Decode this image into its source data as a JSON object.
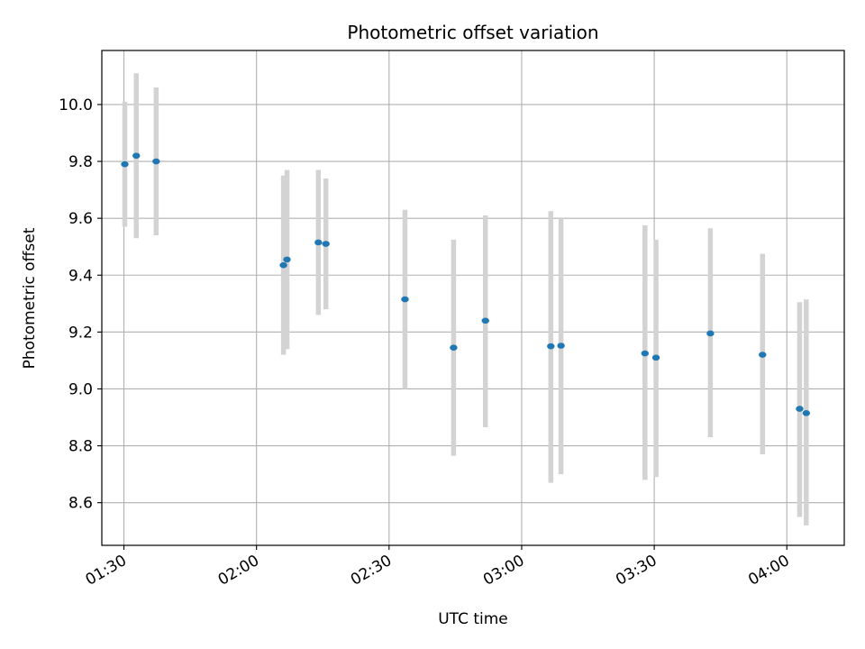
{
  "chart_data": {
    "type": "scatter",
    "title": "Photometric offset variation",
    "xlabel": "UTC time",
    "ylabel": "Photometric offset",
    "x_unit": "time (HH:MM UTC)",
    "xlim": [
      "01:25",
      "04:13"
    ],
    "ylim": [
      8.45,
      10.19
    ],
    "x_ticks": [
      "01:30",
      "02:00",
      "02:30",
      "03:00",
      "03:30",
      "04:00"
    ],
    "y_ticks": [
      8.6,
      8.8,
      9.0,
      9.2,
      9.4,
      9.6,
      9.8,
      10.0
    ],
    "y_tick_labels": [
      "8.6",
      "8.8",
      "9.0",
      "9.2",
      "9.4",
      "9.6",
      "9.8",
      "10.0"
    ],
    "grid": true,
    "x_tick_rotation": "rotated",
    "colors": {
      "points": "#1f77b4",
      "error_bars": "#d3d3d3",
      "grid": "#b0b0b0"
    },
    "points": [
      {
        "x": "01:30:12",
        "y": 9.79,
        "ylow": 9.57,
        "yhigh": 10.01
      },
      {
        "x": "01:32:48",
        "y": 9.82,
        "ylow": 9.53,
        "yhigh": 10.11
      },
      {
        "x": "01:37:18",
        "y": 9.8,
        "ylow": 9.54,
        "yhigh": 10.06
      },
      {
        "x": "02:06:06",
        "y": 9.435,
        "ylow": 9.12,
        "yhigh": 9.75
      },
      {
        "x": "02:06:54",
        "y": 9.455,
        "ylow": 9.14,
        "yhigh": 9.77
      },
      {
        "x": "02:14:00",
        "y": 9.515,
        "ylow": 9.26,
        "yhigh": 9.77
      },
      {
        "x": "02:15:42",
        "y": 9.51,
        "ylow": 9.28,
        "yhigh": 9.74
      },
      {
        "x": "02:33:36",
        "y": 9.315,
        "ylow": 9.0,
        "yhigh": 9.63
      },
      {
        "x": "02:44:36",
        "y": 9.145,
        "ylow": 8.765,
        "yhigh": 9.525
      },
      {
        "x": "02:51:48",
        "y": 9.24,
        "ylow": 8.865,
        "yhigh": 9.61
      },
      {
        "x": "03:06:36",
        "y": 9.15,
        "ylow": 8.67,
        "yhigh": 9.625
      },
      {
        "x": "03:08:54",
        "y": 9.152,
        "ylow": 8.7,
        "yhigh": 9.6
      },
      {
        "x": "03:27:54",
        "y": 9.125,
        "ylow": 8.68,
        "yhigh": 9.575
      },
      {
        "x": "03:30:24",
        "y": 9.11,
        "ylow": 8.69,
        "yhigh": 9.525
      },
      {
        "x": "03:42:42",
        "y": 9.195,
        "ylow": 8.83,
        "yhigh": 9.565
      },
      {
        "x": "03:54:30",
        "y": 9.12,
        "ylow": 8.77,
        "yhigh": 9.475
      },
      {
        "x": "04:02:54",
        "y": 8.93,
        "ylow": 8.55,
        "yhigh": 9.305
      },
      {
        "x": "04:04:24",
        "y": 8.915,
        "ylow": 8.52,
        "yhigh": 9.315
      }
    ]
  }
}
